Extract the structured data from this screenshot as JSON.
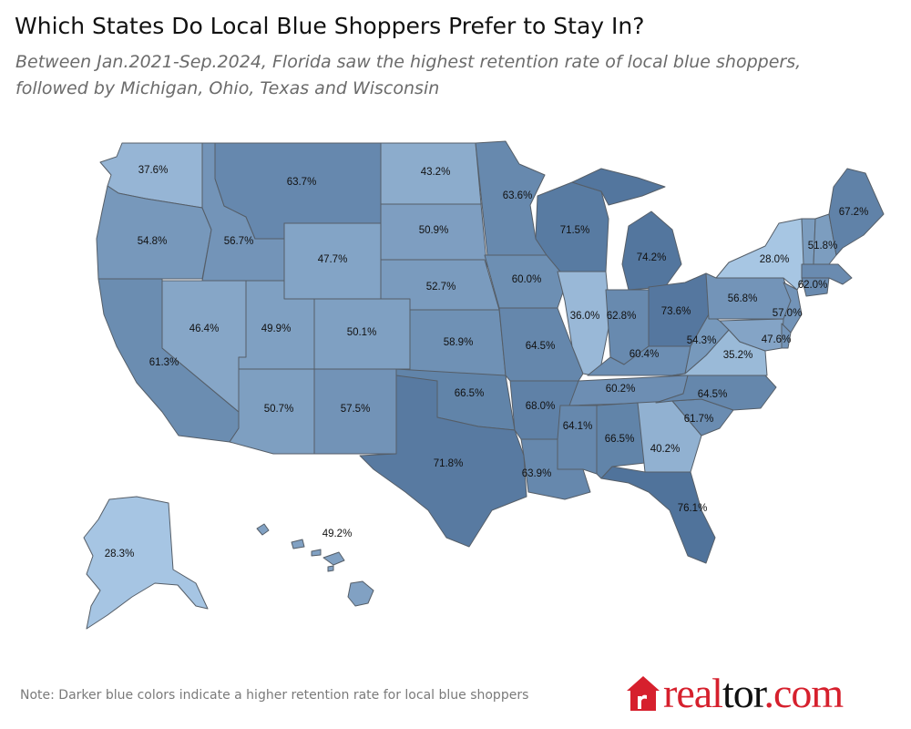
{
  "title": "Which States Do Local Blue Shoppers Prefer to Stay In?",
  "subtitle_line1": "Between Jan.2021-Sep.2024,  Florida saw the highest retention rate of local blue shoppers,",
  "subtitle_line2": "followed by  Michigan,  Ohio, Texas and Wisconsin",
  "note": "Note: Darker blue colors  indicate a higher retention rate for local blue shoppers",
  "logo": {
    "part1": "real",
    "part2": "tor",
    "part3": ".com",
    "icon": "house-icon"
  },
  "colors": {
    "light": "#a7c6e3",
    "dark": "#50739b",
    "logo_red": "#d6202d"
  },
  "states": [
    {
      "id": "WA",
      "label": "37.6%",
      "value": 37.6
    },
    {
      "id": "OR",
      "label": "54.8%",
      "value": 54.8
    },
    {
      "id": "CA",
      "label": "61.3%",
      "value": 61.3
    },
    {
      "id": "ID",
      "label": "56.7%",
      "value": 56.7
    },
    {
      "id": "NV",
      "label": "46.4%",
      "value": 46.4
    },
    {
      "id": "MT",
      "label": "63.7%",
      "value": 63.7
    },
    {
      "id": "WY",
      "label": "47.7%",
      "value": 47.7
    },
    {
      "id": "UT",
      "label": "49.9%",
      "value": 49.9
    },
    {
      "id": "AZ",
      "label": "50.7%",
      "value": 50.7
    },
    {
      "id": "CO",
      "label": "50.1%",
      "value": 50.1
    },
    {
      "id": "NM",
      "label": "57.5%",
      "value": 57.5
    },
    {
      "id": "ND",
      "label": "43.2%",
      "value": 43.2
    },
    {
      "id": "SD",
      "label": "50.9%",
      "value": 50.9
    },
    {
      "id": "NE",
      "label": "52.7%",
      "value": 52.7
    },
    {
      "id": "KS",
      "label": "58.9%",
      "value": 58.9
    },
    {
      "id": "OK",
      "label": "66.5%",
      "value": 66.5
    },
    {
      "id": "TX",
      "label": "71.8%",
      "value": 71.8
    },
    {
      "id": "MN",
      "label": "63.6%",
      "value": 63.6
    },
    {
      "id": "IA",
      "label": "60.0%",
      "value": 60.0
    },
    {
      "id": "MO",
      "label": "64.5%",
      "value": 64.5
    },
    {
      "id": "AR",
      "label": "68.0%",
      "value": 68.0
    },
    {
      "id": "LA",
      "label": "63.9%",
      "value": 63.9
    },
    {
      "id": "WI",
      "label": "71.5%",
      "value": 71.5
    },
    {
      "id": "IL",
      "label": "36.0%",
      "value": 36.0
    },
    {
      "id": "MI",
      "label": "74.2%",
      "value": 74.2
    },
    {
      "id": "IN",
      "label": "62.8%",
      "value": 62.8
    },
    {
      "id": "OH",
      "label": "73.6%",
      "value": 73.6
    },
    {
      "id": "KY",
      "label": "60.4%",
      "value": 60.4
    },
    {
      "id": "TN",
      "label": "60.2%",
      "value": 60.2
    },
    {
      "id": "MS",
      "label": "64.1%",
      "value": 64.1
    },
    {
      "id": "AL",
      "label": "66.5%",
      "value": 66.5
    },
    {
      "id": "GA",
      "label": "40.2%",
      "value": 40.2
    },
    {
      "id": "FL",
      "label": "76.1%",
      "value": 76.1
    },
    {
      "id": "SC",
      "label": "61.7%",
      "value": 61.7
    },
    {
      "id": "NC",
      "label": "64.5%",
      "value": 64.5
    },
    {
      "id": "VA",
      "label": "35.2%",
      "value": 35.2
    },
    {
      "id": "WV",
      "label": "54.3%",
      "value": 54.3
    },
    {
      "id": "PA",
      "label": "56.8%",
      "value": 56.8
    },
    {
      "id": "NY",
      "label": "28.0%",
      "value": 28.0
    },
    {
      "id": "NJ",
      "label": "57.0%",
      "value": 57.0
    },
    {
      "id": "MD",
      "label": "47.6%",
      "value": 47.6
    },
    {
      "id": "CT",
      "label": "62.0%",
      "value": 62.0
    },
    {
      "id": "VT",
      "label": "51.8%",
      "value": 51.8
    },
    {
      "id": "ME",
      "label": "67.2%",
      "value": 67.2
    },
    {
      "id": "AK",
      "label": "28.3%",
      "value": 28.3
    },
    {
      "id": "HI",
      "label": "49.2%",
      "value": 49.2
    }
  ]
}
